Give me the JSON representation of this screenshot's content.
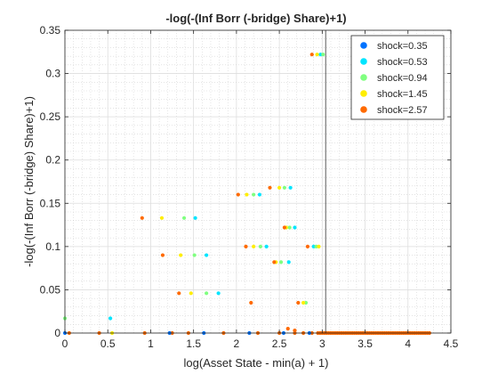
{
  "chart_data": {
    "type": "scatter",
    "title": "-log(-(Inf Borr (-bridge) Share)+1)",
    "xlabel": "log(Asset State - min(a) + 1)",
    "ylabel": "-log(-(Inf Borr (-bridge) Share)+1)",
    "xlim": [
      0,
      4.5
    ],
    "ylim": [
      0,
      0.35
    ],
    "xticks": [
      0,
      0.5,
      1,
      1.5,
      2,
      2.5,
      3,
      3.5,
      4,
      4.5
    ],
    "yticks": [
      0,
      0.05,
      0.1,
      0.15,
      0.2,
      0.25,
      0.3,
      0.35
    ],
    "xtick_labels": [
      "0",
      "0.5",
      "1",
      "1.5",
      "2",
      "2.5",
      "3",
      "3.5",
      "4",
      "4.5"
    ],
    "ytick_labels": [
      "0",
      "0.05",
      "0.1",
      "0.15",
      "0.2",
      "0.25",
      "0.3",
      "0.35"
    ],
    "grid": true,
    "minor_grid": true,
    "legend_position": "top-right",
    "vertical_line_x": 3.04,
    "series": [
      {
        "name": "shock=0.35",
        "color": "#0072ff",
        "points": [
          [
            0,
            0
          ],
          [
            1.22,
            0
          ],
          [
            1.62,
            0
          ],
          [
            2.15,
            0
          ],
          [
            2.55,
            0
          ],
          [
            2.85,
            0
          ]
        ]
      },
      {
        "name": "shock=0.53",
        "color": "#00e5ff",
        "points": [
          [
            0.53,
            0.017
          ],
          [
            1.52,
            0.133
          ],
          [
            1.65,
            0.09
          ],
          [
            1.79,
            0.046
          ],
          [
            2.27,
            0.16
          ],
          [
            2.35,
            0.1
          ],
          [
            2.61,
            0.082
          ],
          [
            2.63,
            0.168
          ],
          [
            2.68,
            0.122
          ],
          [
            2.9,
            0.1
          ],
          [
            2.98,
            0.322
          ]
        ]
      },
      {
        "name": "shock=0.94",
        "color": "#80ff80",
        "points": [
          [
            0,
            0.017
          ],
          [
            1.39,
            0.133
          ],
          [
            1.51,
            0.09
          ],
          [
            1.65,
            0.046
          ],
          [
            2.2,
            0.16
          ],
          [
            2.28,
            0.1
          ],
          [
            2.52,
            0.082
          ],
          [
            2.56,
            0.168
          ],
          [
            2.62,
            0.122
          ],
          [
            2.81,
            0.035
          ],
          [
            2.93,
            0.1
          ],
          [
            3.01,
            0.322
          ]
        ]
      },
      {
        "name": "shock=1.45",
        "color": "#ffee00",
        "points": [
          [
            0.55,
            0
          ],
          [
            1.13,
            0.133
          ],
          [
            1.35,
            0.09
          ],
          [
            1.47,
            0.046
          ],
          [
            2.12,
            0.16
          ],
          [
            2.2,
            0.1
          ],
          [
            2.46,
            0.082
          ],
          [
            2.5,
            0.168
          ],
          [
            2.58,
            0.122
          ],
          [
            2.78,
            0.035
          ],
          [
            2.96,
            0.1
          ],
          [
            2.94,
            0.322
          ]
        ]
      },
      {
        "name": "shock=2.57",
        "color": "#ff6a00",
        "points": [
          [
            0.9,
            0.133
          ],
          [
            1.14,
            0.09
          ],
          [
            1.33,
            0.046
          ],
          [
            2.02,
            0.16
          ],
          [
            2.11,
            0.1
          ],
          [
            2.17,
            0.035
          ],
          [
            2.39,
            0.168
          ],
          [
            2.44,
            0.082
          ],
          [
            2.56,
            0.122
          ],
          [
            2.72,
            0.035
          ],
          [
            2.83,
            0.1
          ],
          [
            2.88,
            0.322
          ],
          [
            2.6,
            0.005
          ],
          [
            2.68,
            0.003
          ]
        ]
      }
    ],
    "baseline_points": {
      "color": "#ff6a00",
      "y": 0,
      "x_start": 2.95,
      "x_end": 4.25,
      "step": 0.025,
      "extra_x": [
        0.05,
        0.4,
        0.93,
        1.25,
        1.44,
        1.85,
        2.25,
        2.5,
        2.68,
        2.78,
        2.88
      ]
    }
  }
}
